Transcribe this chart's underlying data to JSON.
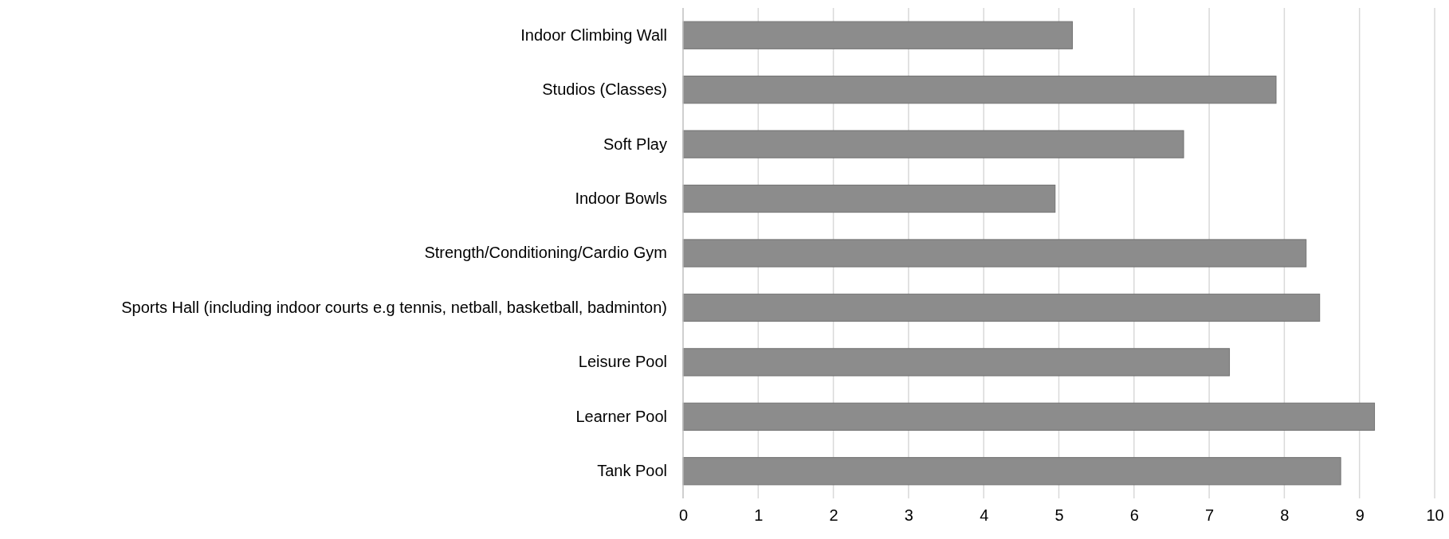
{
  "chart_data": {
    "type": "bar",
    "orientation": "horizontal",
    "categories": [
      "Indoor Climbing Wall",
      "Studios (Classes)",
      "Soft Play",
      "Indoor Bowls",
      "Strength/Conditioning/Cardio Gym",
      "Sports Hall (including indoor courts e.g tennis, netball, basketball, badminton)",
      "Leisure Pool",
      "Learner Pool",
      "Tank Pool"
    ],
    "values": [
      5.18,
      7.89,
      6.66,
      4.95,
      8.29,
      8.47,
      7.27,
      9.2,
      8.75
    ],
    "color": "#8c8c8c",
    "xlim": [
      0,
      10
    ],
    "xticks": [
      0,
      1,
      2,
      3,
      4,
      5,
      6,
      7,
      8,
      9,
      10
    ],
    "grid": "x"
  }
}
